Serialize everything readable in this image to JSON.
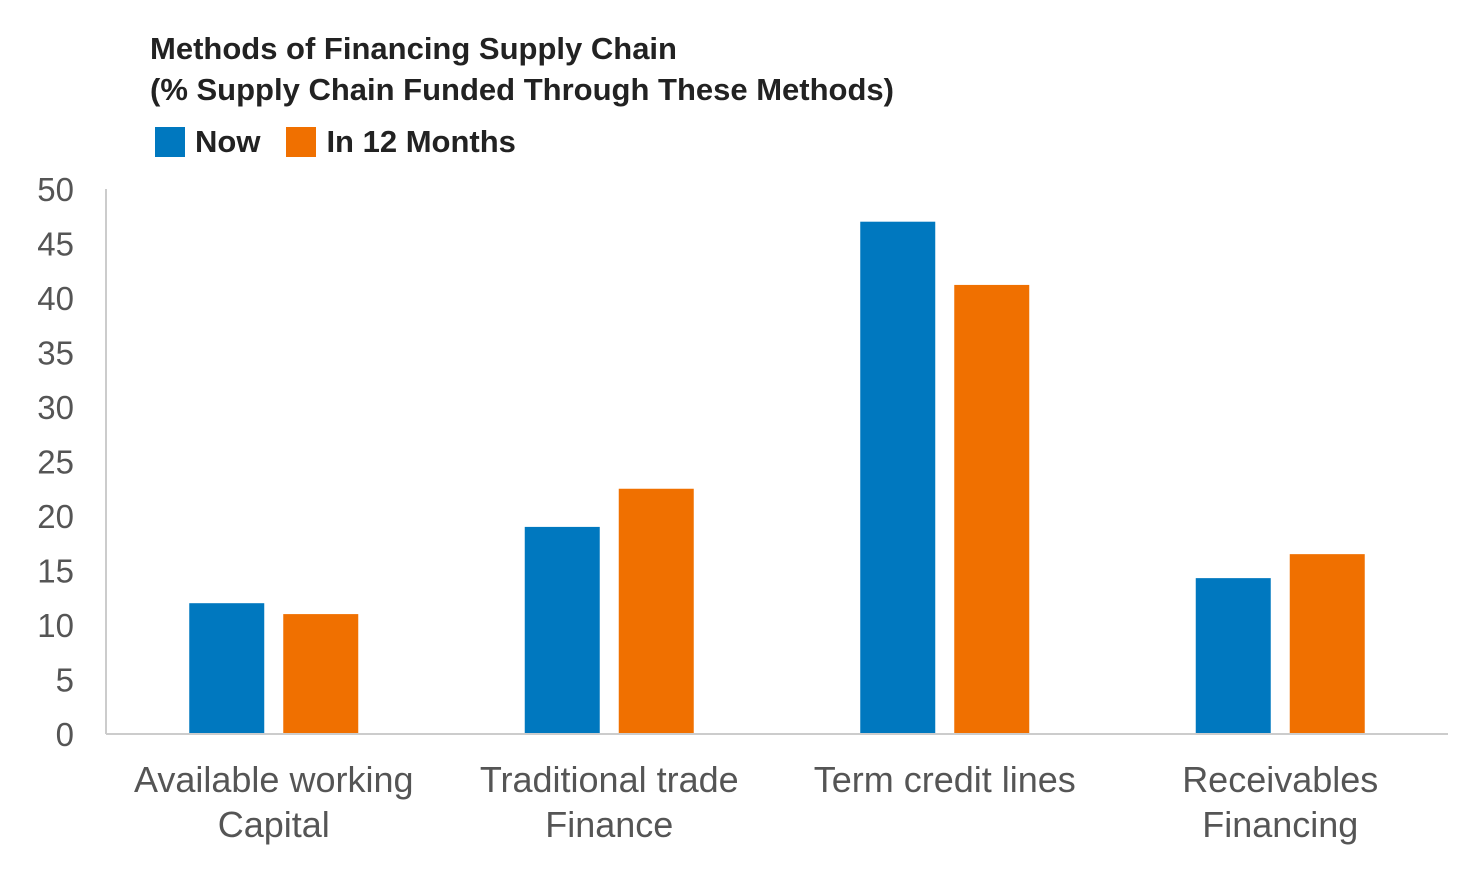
{
  "colors": {
    "now": "#0078BF",
    "in_12_months": "#F07000",
    "axis": "#cccccc",
    "tick_text": "#555555"
  },
  "chart_data": {
    "type": "bar",
    "title": "Methods of Financing Supply Chain",
    "subtitle": "(% Supply Chain Funded Through These Methods)",
    "categories": [
      [
        "Available working",
        "Capital"
      ],
      [
        "Traditional trade",
        "Finance"
      ],
      [
        "Term credit lines"
      ],
      [
        "Receivables",
        "Financing"
      ]
    ],
    "series": [
      {
        "name": "Now",
        "values": [
          12,
          19,
          47,
          14.3
        ]
      },
      {
        "name": "In 12 Months",
        "values": [
          11,
          22.5,
          41.2,
          16.5
        ]
      }
    ],
    "ylim": [
      0,
      50
    ],
    "yticks": [
      "0",
      "5",
      "10",
      "15",
      "20",
      "25",
      "30",
      "35",
      "40",
      "45",
      "50"
    ],
    "xlabel": "",
    "ylabel": "",
    "grid": false,
    "legend_position": "top-left"
  }
}
